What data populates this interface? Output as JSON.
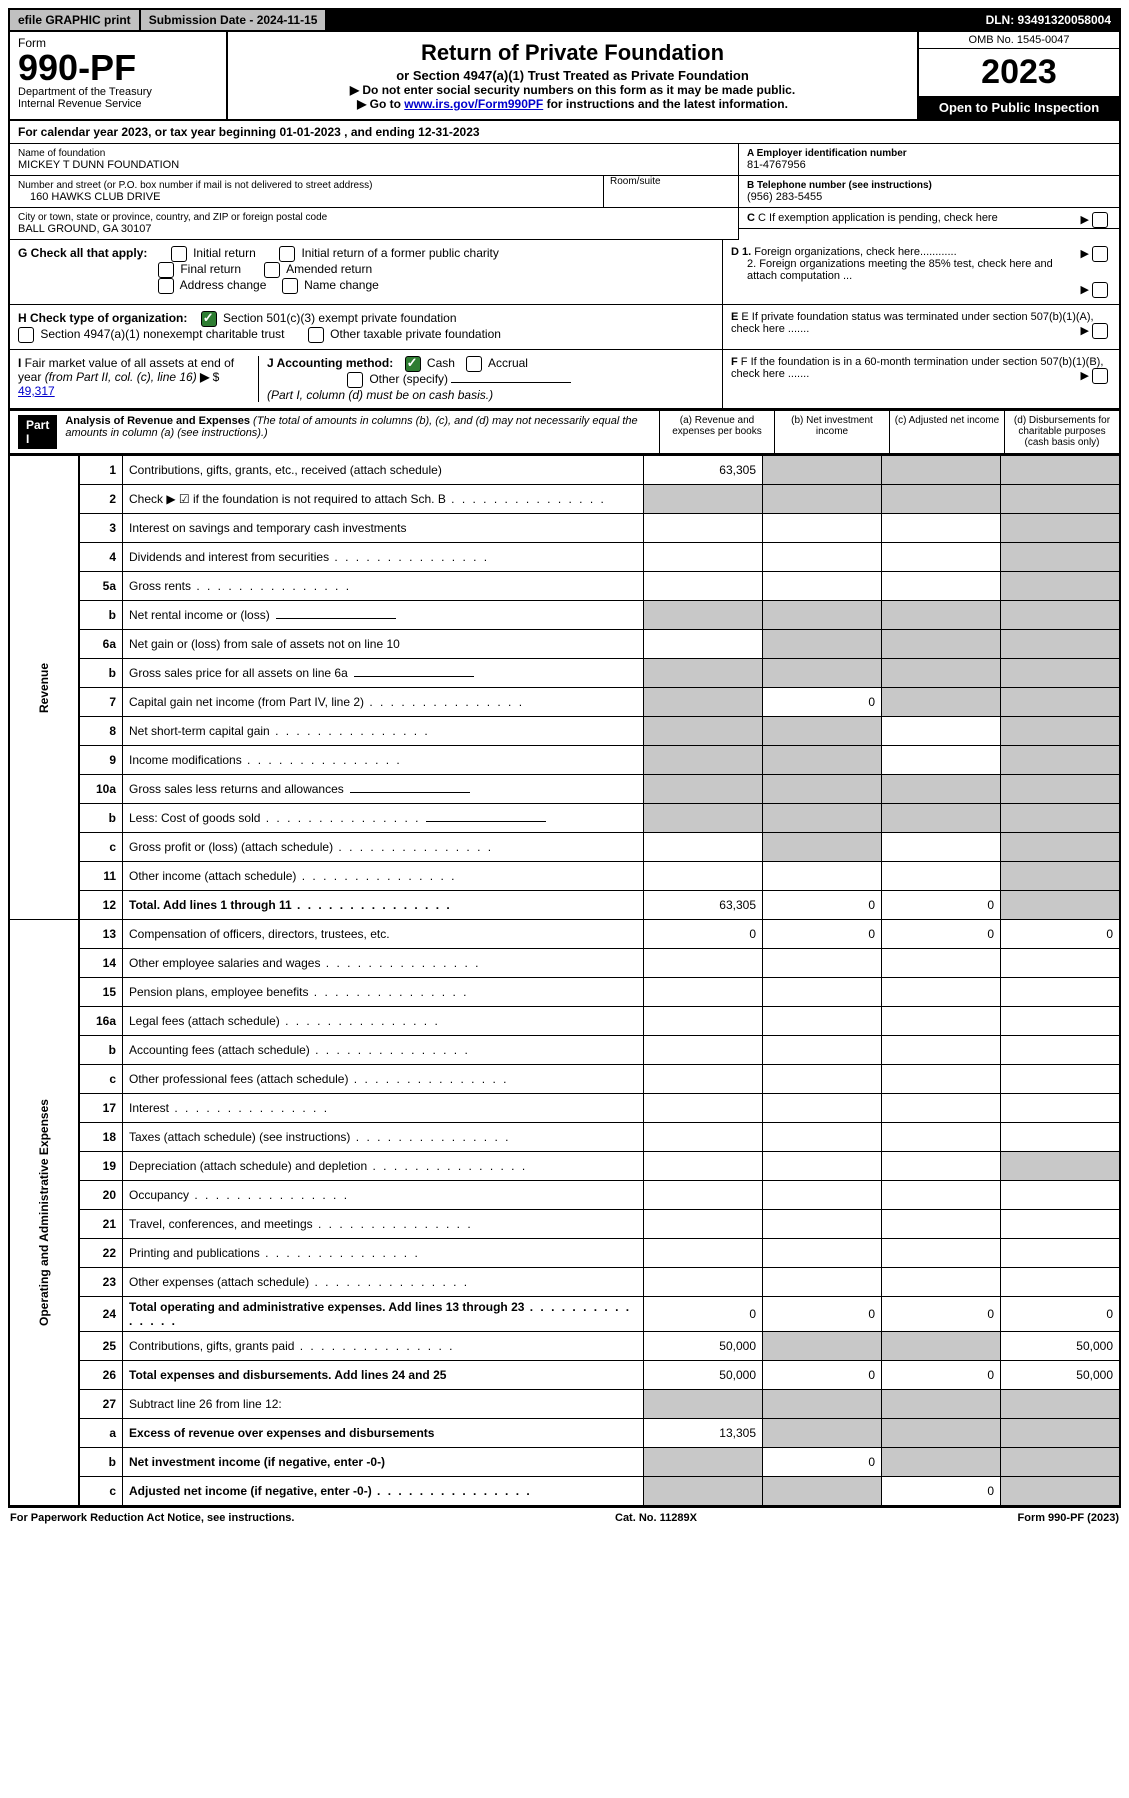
{
  "topbar": {
    "efile": "efile GRAPHIC print",
    "submission_label": "Submission Date - 2024-11-15",
    "dln": "DLN: 93491320058004"
  },
  "header": {
    "form_word": "Form",
    "form_number": "990-PF",
    "dept": "Department of the Treasury",
    "irs": "Internal Revenue Service",
    "title": "Return of Private Foundation",
    "subtitle": "or Section 4947(a)(1) Trust Treated as Private Foundation",
    "inst1": "▶ Do not enter social security numbers on this form as it may be made public.",
    "inst2_prefix": "▶ Go to ",
    "inst2_link": "www.irs.gov/Form990PF",
    "inst2_suffix": " for instructions and the latest information.",
    "omb": "OMB No. 1545-0047",
    "year": "2023",
    "open": "Open to Public Inspection"
  },
  "calyear": "For calendar year 2023, or tax year beginning 01-01-2023                          , and ending 12-31-2023",
  "ident": {
    "name_label": "Name of foundation",
    "name": "MICKEY T DUNN FOUNDATION",
    "addr_label": "Number and street (or P.O. box number if mail is not delivered to street address)",
    "addr": "160 HAWKS CLUB DRIVE",
    "room_label": "Room/suite",
    "city_label": "City or town, state or province, country, and ZIP or foreign postal code",
    "city": "BALL GROUND, GA  30107",
    "ein_label": "A Employer identification number",
    "ein": "81-4767956",
    "tel_label": "B Telephone number (see instructions)",
    "tel": "(956) 283-5455",
    "c": "C If exemption application is pending, check here",
    "d1": "D 1. Foreign organizations, check here............",
    "d2": "2. Foreign organizations meeting the 85% test, check here and attach computation ...",
    "e": "E If private foundation status was terminated under section 507(b)(1)(A), check here .......",
    "f": "F If the foundation is in a 60-month termination under section 507(b)(1)(B), check here .......",
    "g_label": "G Check all that apply:",
    "g_opts": [
      "Initial return",
      "Initial return of a former public charity",
      "Final return",
      "Amended return",
      "Address change",
      "Name change"
    ],
    "h_label": "H Check type of organization:",
    "h_opt1": "Section 501(c)(3) exempt private foundation",
    "h_opt2": "Section 4947(a)(1) nonexempt charitable trust",
    "h_opt3": "Other taxable private foundation",
    "i_label": "I Fair market value of all assets at end of year (from Part II, col. (c), line 16) ▶ $",
    "i_val": "49,317",
    "j_label": "J Accounting method:",
    "j_opts": [
      "Cash",
      "Accrual",
      "Other (specify)"
    ],
    "j_note": "(Part I, column (d) must be on cash basis.)"
  },
  "part1": {
    "label": "Part I",
    "title": "Analysis of Revenue and Expenses",
    "note": "(The total of amounts in columns (b), (c), and (d) may not necessarily equal the amounts in column (a) (see instructions).)",
    "cols": [
      "(a) Revenue and expenses per books",
      "(b) Net investment income",
      "(c) Adjusted net income",
      "(d) Disbursements for charitable purposes (cash basis only)"
    ]
  },
  "sides": {
    "revenue": "Revenue",
    "expenses": "Operating and Administrative Expenses"
  },
  "rows": [
    {
      "n": "1",
      "d": "Contributions, gifts, grants, etc., received (attach schedule)",
      "a": "63,305",
      "grey": [
        false,
        true,
        true,
        true
      ]
    },
    {
      "n": "2",
      "d": "Check ▶ ☑ if the foundation is not required to attach Sch. B",
      "dotted": true,
      "grey": [
        true,
        true,
        true,
        true
      ]
    },
    {
      "n": "3",
      "d": "Interest on savings and temporary cash investments",
      "grey": [
        false,
        false,
        false,
        true
      ]
    },
    {
      "n": "4",
      "d": "Dividends and interest from securities",
      "dotted": true,
      "grey": [
        false,
        false,
        false,
        true
      ]
    },
    {
      "n": "5a",
      "d": "Gross rents",
      "dotted": true,
      "grey": [
        false,
        false,
        false,
        true
      ]
    },
    {
      "n": "b",
      "d": "Net rental income or (loss)",
      "grey": [
        true,
        true,
        true,
        true
      ],
      "inline": true
    },
    {
      "n": "6a",
      "d": "Net gain or (loss) from sale of assets not on line 10",
      "grey": [
        false,
        true,
        true,
        true
      ]
    },
    {
      "n": "b",
      "d": "Gross sales price for all assets on line 6a",
      "grey": [
        true,
        true,
        true,
        true
      ],
      "inline": true
    },
    {
      "n": "7",
      "d": "Capital gain net income (from Part IV, line 2)",
      "dotted": true,
      "b": "0",
      "grey": [
        true,
        false,
        true,
        true
      ]
    },
    {
      "n": "8",
      "d": "Net short-term capital gain",
      "dotted": true,
      "grey": [
        true,
        true,
        false,
        true
      ]
    },
    {
      "n": "9",
      "d": "Income modifications",
      "dotted": true,
      "grey": [
        true,
        true,
        false,
        true
      ]
    },
    {
      "n": "10a",
      "d": "Gross sales less returns and allowances",
      "grey": [
        true,
        true,
        true,
        true
      ],
      "inline": true
    },
    {
      "n": "b",
      "d": "Less: Cost of goods sold",
      "dotted": true,
      "grey": [
        true,
        true,
        true,
        true
      ],
      "inline": true
    },
    {
      "n": "c",
      "d": "Gross profit or (loss) (attach schedule)",
      "dotted": true,
      "grey": [
        false,
        true,
        false,
        true
      ]
    },
    {
      "n": "11",
      "d": "Other income (attach schedule)",
      "dotted": true,
      "grey": [
        false,
        false,
        false,
        true
      ]
    },
    {
      "n": "12",
      "d": "Total. Add lines 1 through 11",
      "dotted": true,
      "bold": true,
      "a": "63,305",
      "b": "0",
      "c": "0",
      "grey": [
        false,
        false,
        false,
        true
      ]
    }
  ],
  "exp_rows": [
    {
      "n": "13",
      "d": "Compensation of officers, directors, trustees, etc.",
      "a": "0",
      "b": "0",
      "c": "0",
      "dv": "0"
    },
    {
      "n": "14",
      "d": "Other employee salaries and wages",
      "dotted": true
    },
    {
      "n": "15",
      "d": "Pension plans, employee benefits",
      "dotted": true
    },
    {
      "n": "16a",
      "d": "Legal fees (attach schedule)",
      "dotted": true
    },
    {
      "n": "b",
      "d": "Accounting fees (attach schedule)",
      "dotted": true
    },
    {
      "n": "c",
      "d": "Other professional fees (attach schedule)",
      "dotted": true
    },
    {
      "n": "17",
      "d": "Interest",
      "dotted": true
    },
    {
      "n": "18",
      "d": "Taxes (attach schedule) (see instructions)",
      "dotted": true
    },
    {
      "n": "19",
      "d": "Depreciation (attach schedule) and depletion",
      "dotted": true,
      "grey": [
        false,
        false,
        false,
        true
      ]
    },
    {
      "n": "20",
      "d": "Occupancy",
      "dotted": true
    },
    {
      "n": "21",
      "d": "Travel, conferences, and meetings",
      "dotted": true
    },
    {
      "n": "22",
      "d": "Printing and publications",
      "dotted": true
    },
    {
      "n": "23",
      "d": "Other expenses (attach schedule)",
      "dotted": true
    },
    {
      "n": "24",
      "d": "Total operating and administrative expenses. Add lines 13 through 23",
      "dotted": true,
      "bold": true,
      "a": "0",
      "b": "0",
      "c": "0",
      "dv": "0"
    },
    {
      "n": "25",
      "d": "Contributions, gifts, grants paid",
      "dotted": true,
      "a": "50,000",
      "dv": "50,000",
      "grey": [
        false,
        true,
        true,
        false
      ]
    },
    {
      "n": "26",
      "d": "Total expenses and disbursements. Add lines 24 and 25",
      "bold": true,
      "a": "50,000",
      "b": "0",
      "c": "0",
      "dv": "50,000"
    },
    {
      "n": "27",
      "d": "Subtract line 26 from line 12:",
      "grey": [
        true,
        true,
        true,
        true
      ]
    },
    {
      "n": "a",
      "d": "Excess of revenue over expenses and disbursements",
      "bold": true,
      "a": "13,305",
      "grey": [
        false,
        true,
        true,
        true
      ]
    },
    {
      "n": "b",
      "d": "Net investment income (if negative, enter -0-)",
      "bold": true,
      "b": "0",
      "grey": [
        true,
        false,
        true,
        true
      ]
    },
    {
      "n": "c",
      "d": "Adjusted net income (if negative, enter -0-)",
      "dotted": true,
      "bold": true,
      "c": "0",
      "grey": [
        true,
        true,
        false,
        true
      ]
    }
  ],
  "footer": {
    "left": "For Paperwork Reduction Act Notice, see instructions.",
    "mid": "Cat. No. 11289X",
    "right": "Form 990-PF (2023)"
  }
}
